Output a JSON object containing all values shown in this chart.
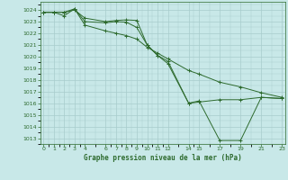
{
  "title": "Graphe pression niveau de la mer (hPa)",
  "bg_color": "#c8e8e8",
  "grid_color": "#a8cccc",
  "line_color": "#2d6a2d",
  "xlim": [
    -0.3,
    23.3
  ],
  "ylim": [
    1012.5,
    1024.7
  ],
  "xticks": [
    0,
    1,
    2,
    3,
    4,
    6,
    7,
    8,
    9,
    10,
    11,
    12,
    14,
    15,
    17,
    19,
    21,
    23
  ],
  "yticks": [
    1013,
    1014,
    1015,
    1016,
    1017,
    1018,
    1019,
    1020,
    1021,
    1022,
    1023,
    1024
  ],
  "series1_x": [
    0,
    1,
    2,
    3,
    4,
    6,
    7,
    8,
    9,
    10,
    11,
    12,
    14,
    15,
    17,
    19,
    21,
    23
  ],
  "series1_y": [
    1023.8,
    1023.8,
    1023.8,
    1024.0,
    1023.3,
    1023.0,
    1023.1,
    1023.15,
    1023.1,
    1021.0,
    1020.1,
    1019.6,
    1016.0,
    1016.1,
    1016.3,
    1016.3,
    1016.5,
    1016.4
  ],
  "series2_x": [
    0,
    1,
    2,
    3,
    4,
    6,
    7,
    8,
    9,
    10,
    11,
    12,
    14,
    15,
    17,
    19,
    21,
    23
  ],
  "series2_y": [
    1023.8,
    1023.8,
    1023.8,
    1024.1,
    1023.0,
    1022.9,
    1023.0,
    1022.95,
    1022.5,
    1021.0,
    1020.1,
    1019.4,
    1016.0,
    1016.2,
    1012.8,
    1012.8,
    1016.5,
    1016.4
  ],
  "series3_x": [
    0,
    1,
    2,
    3,
    4,
    6,
    7,
    8,
    9,
    10,
    11,
    12,
    14,
    15,
    17,
    19,
    21,
    23
  ],
  "series3_y": [
    1023.8,
    1023.8,
    1023.5,
    1024.1,
    1022.7,
    1022.2,
    1022.0,
    1021.8,
    1021.5,
    1020.8,
    1020.3,
    1019.8,
    1018.8,
    1018.5,
    1017.8,
    1017.4,
    1016.9,
    1016.5
  ]
}
